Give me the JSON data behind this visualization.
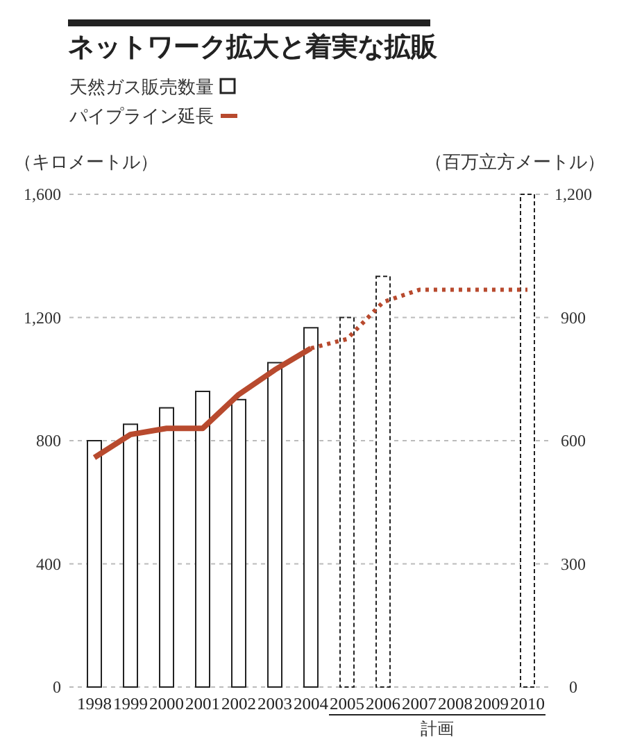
{
  "chart_data": {
    "type": "bar",
    "title": "ネットワーク拡大と着実な拡販",
    "categories": [
      "1998",
      "1999",
      "2000",
      "2001",
      "2002",
      "2003",
      "2004",
      "2005",
      "2006",
      "2007",
      "2008",
      "2009",
      "2010"
    ],
    "series": [
      {
        "name": "天然ガス販売数量",
        "axis": "y2",
        "color": "#222222",
        "line_style": "solid",
        "values": [
          600,
          640,
          680,
          720,
          700,
          790,
          875,
          null,
          null,
          null,
          null,
          null,
          null
        ]
      },
      {
        "axis": "y2",
        "color": "#222222",
        "line_style": "dashed",
        "values": [
          null,
          null,
          null,
          null,
          null,
          null,
          null,
          900,
          1000,
          null,
          null,
          null,
          1200
        ]
      },
      {
        "name": "パイプライン延長",
        "type": "line",
        "color": "#b84a2e",
        "line_style": "solid",
        "values": [
          745,
          820,
          840,
          840,
          950,
          1030,
          1100,
          null,
          null,
          null,
          null,
          null,
          null
        ]
      },
      {
        "type": "line",
        "color": "#b84a2e",
        "line_style": "dotted",
        "values": [
          null,
          null,
          null,
          null,
          null,
          null,
          1100,
          1130,
          1250,
          1290,
          1290,
          1290,
          1290
        ]
      }
    ],
    "ylabel": "（キロメートル）",
    "y2label": "（百万立方メートル）",
    "ylim": [
      0,
      1600
    ],
    "yticks": [
      0,
      400,
      800,
      {
        "value": 1200,
        "label": "1,200"
      },
      {
        "value": 1600,
        "label": "1,600"
      }
    ],
    "y2lim": [
      0,
      1200
    ],
    "y2ticks": [
      0,
      300,
      600,
      900,
      {
        "value": 1200,
        "label": "1,200"
      }
    ],
    "grid": "y",
    "legend": "top left",
    "annotations": [
      "計画"
    ]
  }
}
